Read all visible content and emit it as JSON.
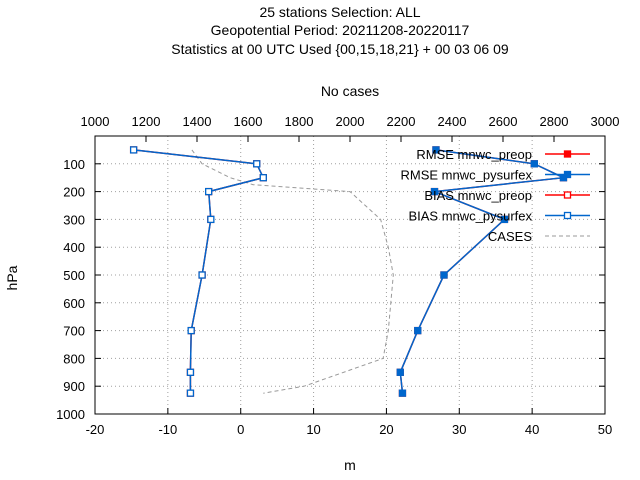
{
  "chart_data": {
    "type": "line",
    "title_lines": [
      "25 stations Selection: ALL",
      "Geopotential  Period: 20211208-20220117",
      "Statistics at 00 UTC  Used {00,15,18,21} + 00 03 06 09"
    ],
    "x2label": "No cases",
    "xlabel": "m",
    "ylabel": "hPa",
    "xlim": [
      -20,
      50
    ],
    "x2lim": [
      1000,
      3000
    ],
    "ylim": [
      1000,
      0
    ],
    "xticks": [
      "-20",
      "-10",
      "0",
      "10",
      "20",
      "30",
      "40",
      "50"
    ],
    "x2ticks": [
      "1000",
      "1200",
      "1400",
      "1600",
      "1800",
      "2000",
      "2200",
      "2400",
      "2600",
      "2800",
      "3000"
    ],
    "yticks": [
      "100",
      "200",
      "300",
      "400",
      "500",
      "600",
      "700",
      "800",
      "900",
      "1000"
    ],
    "grid": true,
    "legend_position": "top-right",
    "series": [
      {
        "name": "RMSE mnwc_preop",
        "color": "#ff0000",
        "marker": "filled-square",
        "dash": false,
        "axis": "bottom",
        "points": [
          [
            22.2,
            925
          ],
          [
            21.9,
            850
          ],
          [
            24.3,
            700
          ],
          [
            27.9,
            500
          ],
          [
            36.2,
            300
          ],
          [
            26.6,
            200
          ],
          [
            44.3,
            150
          ],
          [
            40.3,
            100
          ],
          [
            26.8,
            50
          ]
        ]
      },
      {
        "name": "RMSE mnwc_pysurfex",
        "color": "#0066cc",
        "marker": "filled-square",
        "dash": false,
        "axis": "bottom",
        "points": [
          [
            22.2,
            925
          ],
          [
            21.9,
            850
          ],
          [
            24.3,
            700
          ],
          [
            27.9,
            500
          ],
          [
            36.2,
            300
          ],
          [
            26.6,
            200
          ],
          [
            44.3,
            150
          ],
          [
            40.3,
            100
          ],
          [
            26.8,
            50
          ]
        ]
      },
      {
        "name": "BIAS mnwc_preop",
        "color": "#ff0000",
        "marker": "open-square",
        "dash": false,
        "axis": "bottom",
        "points": [
          [
            -6.9,
            925
          ],
          [
            -6.9,
            850
          ],
          [
            -6.8,
            700
          ],
          [
            -5.3,
            500
          ],
          [
            -4.1,
            300
          ],
          [
            -4.4,
            200
          ],
          [
            3.1,
            150
          ],
          [
            2.2,
            100
          ],
          [
            -14.7,
            50
          ]
        ]
      },
      {
        "name": "BIAS mnwc_pysurfex",
        "color": "#0066cc",
        "marker": "open-square",
        "dash": false,
        "axis": "bottom",
        "points": [
          [
            -6.9,
            925
          ],
          [
            -6.9,
            850
          ],
          [
            -6.8,
            700
          ],
          [
            -5.3,
            500
          ],
          [
            -4.1,
            300
          ],
          [
            -4.4,
            200
          ],
          [
            3.1,
            150
          ],
          [
            2.2,
            100
          ],
          [
            -14.7,
            50
          ]
        ]
      },
      {
        "name": "CASES",
        "color": "#999999",
        "marker": "none",
        "dash": true,
        "axis": "top",
        "points": [
          [
            1380,
            50
          ],
          [
            1420,
            100
          ],
          [
            1530,
            150
          ],
          [
            1620,
            175
          ],
          [
            2000,
            200
          ],
          [
            2120,
            300
          ],
          [
            2150,
            400
          ],
          [
            2170,
            500
          ],
          [
            2160,
            600
          ],
          [
            2150,
            700
          ],
          [
            2130,
            800
          ],
          [
            1820,
            900
          ],
          [
            1660,
            925
          ]
        ]
      }
    ]
  }
}
